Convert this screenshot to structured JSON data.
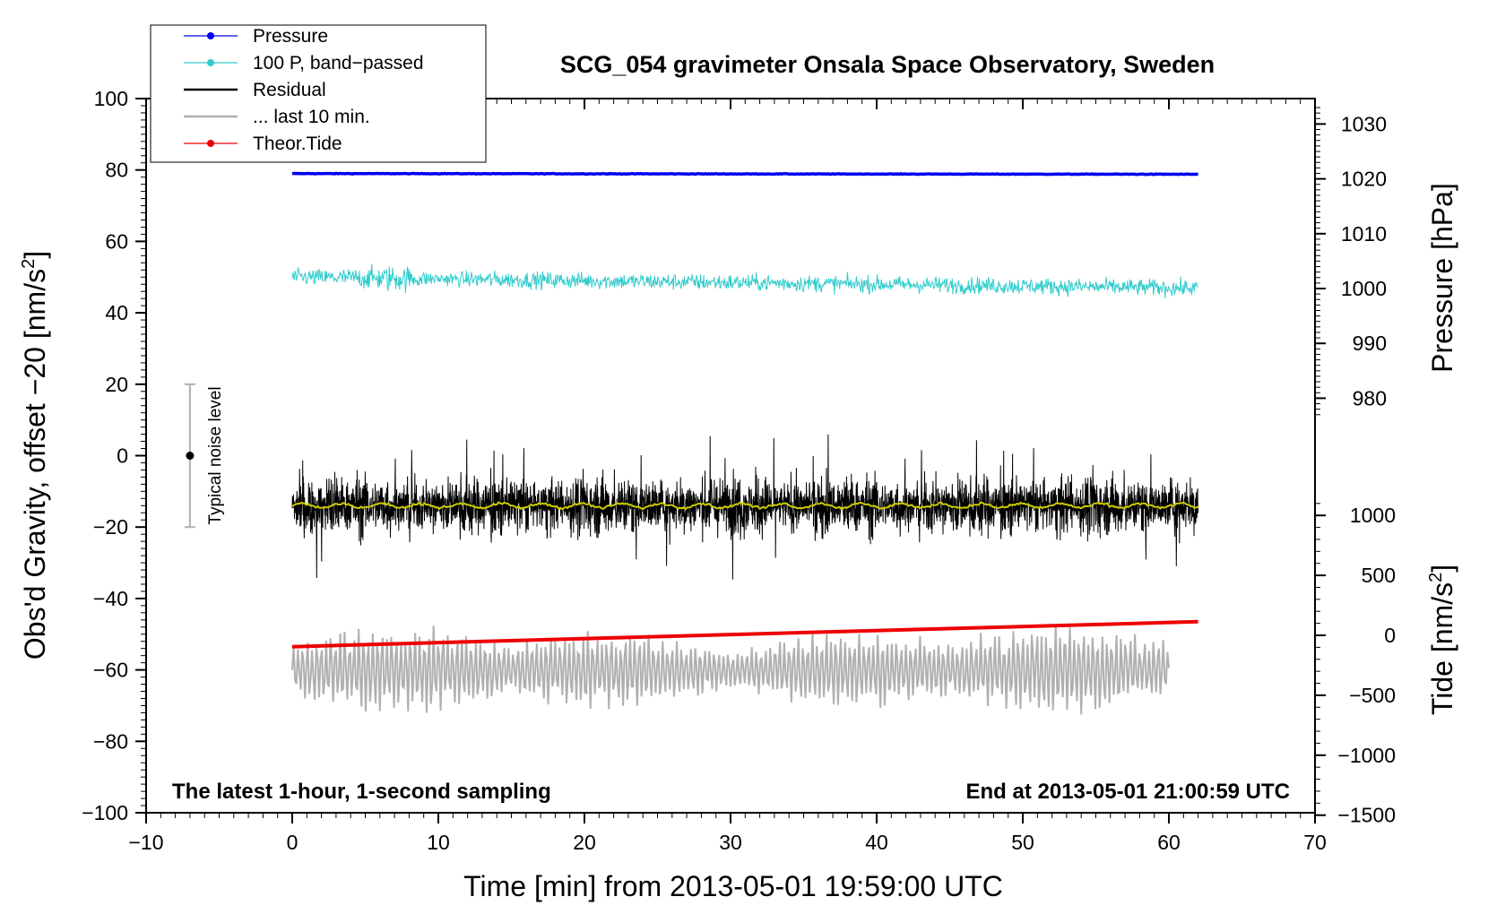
{
  "chart_data": {
    "type": "line",
    "title": "SCG_054 gravimeter Onsala Space Observatory, Sweden",
    "xlabel": "Time [min] from 2013-05-01 19:59:00 UTC",
    "ylabel_left_main": "Obs'd Gravity, offset −20 [nm/s",
    "ylabel_left_sup": "2",
    "ylabel_left_end": "]",
    "ylabel_right_top": "Pressure [hPa]",
    "ylabel_right_bottom_main": "Tide [nm/s",
    "ylabel_right_bottom_sup": "2",
    "ylabel_right_bottom_end": "]",
    "xlim": [
      -10,
      70
    ],
    "ylim": [
      -100,
      100
    ],
    "x_ticks": [
      "−10",
      "0",
      "10",
      "20",
      "30",
      "40",
      "50",
      "60",
      "70"
    ],
    "y_ticks": [
      "−100",
      "−80",
      "−60",
      "−40",
      "−20",
      "0",
      "20",
      "40",
      "60",
      "80",
      "100"
    ],
    "pressure_ticks": [
      {
        "label": "1030",
        "value": 1030
      },
      {
        "label": "1020",
        "value": 1020
      },
      {
        "label": "1010",
        "value": 1010
      },
      {
        "label": "1000",
        "value": 1000
      },
      {
        "label": "990",
        "value": 990
      },
      {
        "label": "980",
        "value": 980
      }
    ],
    "tide_ticks": [
      {
        "label": "1000",
        "value": 1000
      },
      {
        "label": "500",
        "value": 500
      },
      {
        "label": "0",
        "value": 0
      },
      {
        "label": "−500",
        "value": -500
      },
      {
        "label": "−1000",
        "value": -1000
      },
      {
        "label": "−1500",
        "value": -1500
      }
    ],
    "legend": [
      {
        "label": "Pressure",
        "color": "#0000ee",
        "marker": true
      },
      {
        "label": "100 P, band−passed",
        "color": "#33cccc",
        "marker": true
      },
      {
        "label": "Residual",
        "color": "#000000",
        "marker": false
      },
      {
        "label": "... last 10 min.",
        "color": "#b0b0b0",
        "marker": false
      },
      {
        "label": "Theor.Tide",
        "color": "#ee0000",
        "marker": true
      }
    ],
    "series": [
      {
        "name": "Pressure",
        "color": "#0000ee",
        "x_range": [
          0,
          62
        ],
        "y_start": 79,
        "y_end": 78.8
      },
      {
        "name": "100 P, band-passed",
        "color": "#33cccc",
        "x_range": [
          0,
          62
        ],
        "y_center": 50,
        "amplitude": 3
      },
      {
        "name": "Residual",
        "color": "#000000",
        "x_range": [
          0,
          62
        ],
        "y_center": -14,
        "amplitude": 10
      },
      {
        "name": "Residual smoothed",
        "color": "#cccc00",
        "x_range": [
          0,
          62
        ],
        "y_center": -14
      },
      {
        "name": "... last 10 min.",
        "color": "#b0b0b0",
        "x_range": [
          0,
          60
        ],
        "y_center": -60,
        "amplitude": 8
      },
      {
        "name": "Theor.Tide",
        "color": "#ee0000",
        "x_range": [
          0,
          62
        ],
        "y_start": -53.5,
        "y_end": -46.5
      }
    ],
    "noise_bar": {
      "x": -7,
      "y": 0,
      "ymin": -20,
      "ymax": 20,
      "label": "Typical noise level"
    },
    "annotation_left": "The latest 1-hour, 1-second sampling",
    "annotation_right": "End at 2013-05-01 21:00:59 UTC"
  }
}
